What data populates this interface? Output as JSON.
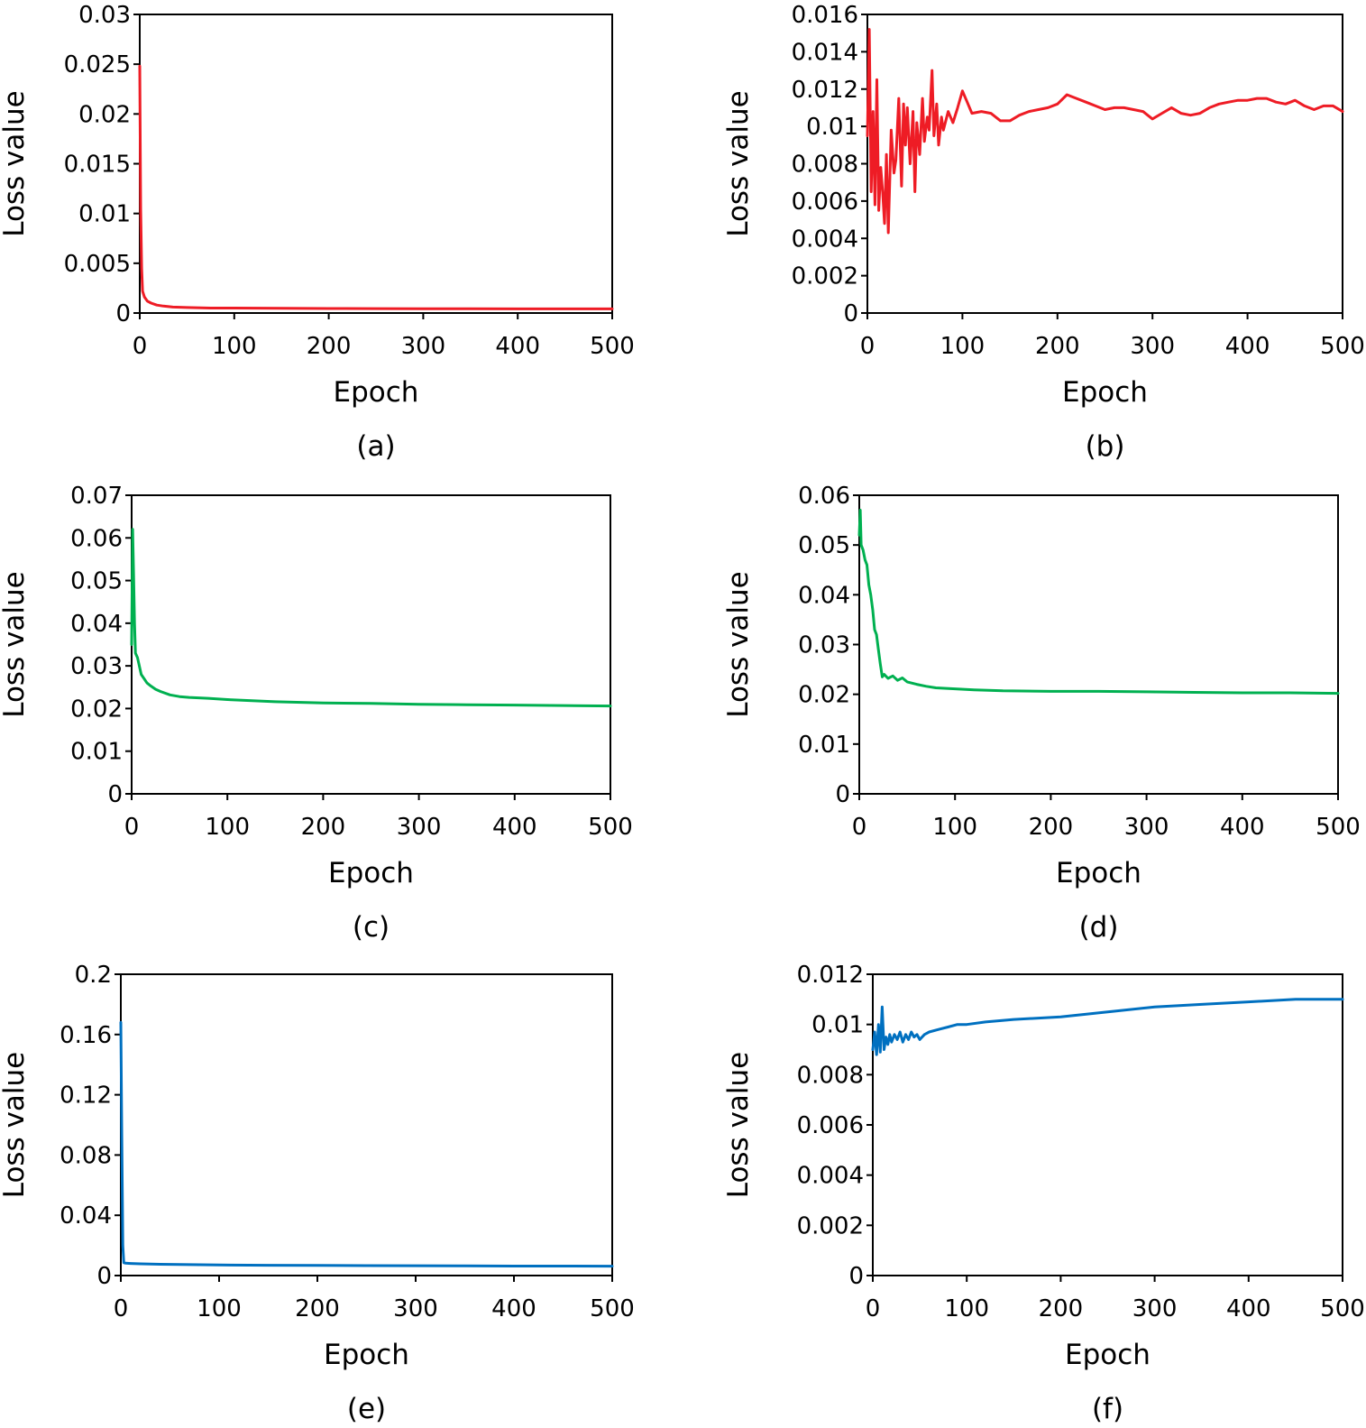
{
  "chart_data": [
    {
      "id": "a",
      "type": "line",
      "caption": "(a)",
      "xlabel": "Epoch",
      "ylabel": "Loss value",
      "xlim": [
        0,
        500
      ],
      "ylim": [
        0,
        0.03
      ],
      "xticks": [
        "0",
        "100",
        "200",
        "300",
        "400",
        "500"
      ],
      "yticks": [
        "0",
        "0.005",
        "0.01",
        "0.015",
        "0.02",
        "0.025",
        "0.03"
      ],
      "grid": false,
      "color": "#ee1c25",
      "series": [
        {
          "x": [
            0,
            1,
            2,
            3,
            5,
            8,
            12,
            18,
            25,
            35,
            50,
            75,
            100,
            150,
            200,
            250,
            300,
            350,
            400,
            450,
            500
          ],
          "values": [
            0.0248,
            0.0105,
            0.0045,
            0.0022,
            0.0016,
            0.0012,
            0.001,
            0.0008,
            0.0007,
            0.0006,
            0.00055,
            0.0005,
            0.0005,
            0.00047,
            0.00045,
            0.00044,
            0.00043,
            0.00043,
            0.00042,
            0.00042,
            0.00042
          ]
        }
      ]
    },
    {
      "id": "b",
      "type": "line",
      "caption": "(b)",
      "xlabel": "Epoch",
      "ylabel": "Loss value",
      "xlim": [
        0,
        500
      ],
      "ylim": [
        0,
        0.016
      ],
      "xticks": [
        "0",
        "100",
        "200",
        "300",
        "400",
        "500"
      ],
      "yticks": [
        "0",
        "0.002",
        "0.004",
        "0.006",
        "0.008",
        "0.01",
        "0.012",
        "0.014",
        "0.016"
      ],
      "grid": false,
      "color": "#ee1c25",
      "series": [
        {
          "x": [
            0,
            2,
            4,
            6,
            8,
            10,
            12,
            14,
            16,
            18,
            20,
            22,
            25,
            28,
            30,
            33,
            36,
            38,
            40,
            42,
            45,
            48,
            50,
            52,
            55,
            58,
            60,
            63,
            65,
            68,
            70,
            73,
            75,
            78,
            80,
            85,
            90,
            95,
            100,
            105,
            110,
            120,
            130,
            140,
            150,
            160,
            170,
            180,
            190,
            200,
            210,
            220,
            230,
            240,
            250,
            260,
            270,
            280,
            290,
            300,
            310,
            320,
            330,
            340,
            350,
            360,
            370,
            380,
            390,
            400,
            410,
            420,
            430,
            440,
            450,
            460,
            470,
            480,
            490,
            500
          ],
          "values": [
            0.0095,
            0.0152,
            0.0065,
            0.0108,
            0.0058,
            0.0125,
            0.0055,
            0.0078,
            0.0065,
            0.0048,
            0.0085,
            0.0043,
            0.0098,
            0.0075,
            0.0082,
            0.0115,
            0.0068,
            0.0112,
            0.009,
            0.011,
            0.008,
            0.0108,
            0.0065,
            0.0102,
            0.0085,
            0.0115,
            0.0092,
            0.0105,
            0.0098,
            0.013,
            0.0095,
            0.0112,
            0.009,
            0.0105,
            0.0098,
            0.0108,
            0.0102,
            0.011,
            0.0119,
            0.0113,
            0.0107,
            0.0108,
            0.0107,
            0.0103,
            0.0103,
            0.0106,
            0.0108,
            0.0109,
            0.011,
            0.0112,
            0.0117,
            0.0115,
            0.0113,
            0.0111,
            0.0109,
            0.011,
            0.011,
            0.0109,
            0.0108,
            0.0104,
            0.0107,
            0.011,
            0.0107,
            0.0106,
            0.0107,
            0.011,
            0.0112,
            0.0113,
            0.0114,
            0.0114,
            0.0115,
            0.0115,
            0.0113,
            0.0112,
            0.0114,
            0.0111,
            0.0109,
            0.0111,
            0.0111,
            0.0108
          ]
        }
      ]
    },
    {
      "id": "c",
      "type": "line",
      "caption": "(c)",
      "xlabel": "Epoch",
      "ylabel": "Loss value",
      "xlim": [
        0,
        500
      ],
      "ylim": [
        0,
        0.07
      ],
      "xticks": [
        "0",
        "100",
        "200",
        "300",
        "400",
        "500"
      ],
      "yticks": [
        "0",
        "0.01",
        "0.02",
        "0.03",
        "0.04",
        "0.05",
        "0.06",
        "0.07"
      ],
      "grid": false,
      "color": "#00b050",
      "series": [
        {
          "x": [
            0,
            1,
            2,
            3,
            4,
            6,
            8,
            10,
            13,
            16,
            20,
            25,
            30,
            40,
            50,
            60,
            80,
            100,
            150,
            200,
            250,
            300,
            350,
            400,
            450,
            500
          ],
          "values": [
            0.035,
            0.062,
            0.052,
            0.04,
            0.033,
            0.032,
            0.03,
            0.028,
            0.027,
            0.026,
            0.0253,
            0.0245,
            0.024,
            0.0232,
            0.0228,
            0.0226,
            0.0224,
            0.0221,
            0.0216,
            0.0213,
            0.0212,
            0.021,
            0.0209,
            0.0208,
            0.0207,
            0.0206
          ]
        }
      ]
    },
    {
      "id": "d",
      "type": "line",
      "caption": "(d)",
      "xlabel": "Epoch",
      "ylabel": "Loss value",
      "xlim": [
        0,
        500
      ],
      "ylim": [
        0,
        0.06
      ],
      "xticks": [
        "0",
        "100",
        "200",
        "300",
        "400",
        "500"
      ],
      "yticks": [
        "0",
        "0.01",
        "0.02",
        "0.03",
        "0.04",
        "0.05",
        "0.06"
      ],
      "grid": false,
      "color": "#00b050",
      "series": [
        {
          "x": [
            0,
            1,
            2,
            4,
            6,
            8,
            10,
            12,
            14,
            16,
            18,
            20,
            22,
            24,
            26,
            30,
            35,
            40,
            45,
            50,
            60,
            70,
            80,
            100,
            120,
            150,
            200,
            250,
            300,
            350,
            400,
            450,
            500
          ],
          "values": [
            0.052,
            0.057,
            0.05,
            0.049,
            0.047,
            0.046,
            0.042,
            0.04,
            0.037,
            0.033,
            0.032,
            0.029,
            0.026,
            0.0235,
            0.024,
            0.0232,
            0.0237,
            0.0228,
            0.0233,
            0.0225,
            0.022,
            0.0216,
            0.0213,
            0.0211,
            0.0209,
            0.0207,
            0.0206,
            0.0206,
            0.0205,
            0.0204,
            0.0203,
            0.0203,
            0.0202
          ]
        }
      ]
    },
    {
      "id": "e",
      "type": "line",
      "caption": "(e)",
      "xlabel": "Epoch",
      "ylabel": "Loss value",
      "xlim": [
        0,
        500
      ],
      "ylim": [
        0,
        0.2
      ],
      "xticks": [
        "0",
        "100",
        "200",
        "300",
        "400",
        "500"
      ],
      "yticks": [
        "0",
        "0.04",
        "0.08",
        "0.12",
        "0.16",
        "0.2"
      ],
      "grid": false,
      "color": "#0070c0",
      "series": [
        {
          "x": [
            0,
            1,
            2,
            3,
            5,
            10,
            20,
            40,
            60,
            100,
            150,
            200,
            250,
            300,
            350,
            400,
            450,
            500
          ],
          "values": [
            0.168,
            0.09,
            0.02,
            0.0085,
            0.0082,
            0.008,
            0.0078,
            0.0075,
            0.0073,
            0.007,
            0.0068,
            0.0067,
            0.0066,
            0.0065,
            0.0064,
            0.0063,
            0.0063,
            0.0062
          ]
        }
      ]
    },
    {
      "id": "f",
      "type": "line",
      "caption": "(f)",
      "xlabel": "Epoch",
      "ylabel": "Loss value",
      "xlim": [
        0,
        500
      ],
      "ylim": [
        0,
        0.012
      ],
      "xticks": [
        "0",
        "100",
        "200",
        "300",
        "400",
        "500"
      ],
      "yticks": [
        "0",
        "0.002",
        "0.004",
        "0.006",
        "0.008",
        "0.01",
        "0.012"
      ],
      "grid": false,
      "color": "#0070c0",
      "series": [
        {
          "x": [
            0,
            2,
            4,
            6,
            8,
            10,
            12,
            14,
            16,
            18,
            20,
            23,
            26,
            29,
            32,
            35,
            38,
            41,
            44,
            47,
            50,
            55,
            60,
            70,
            80,
            90,
            100,
            120,
            150,
            200,
            250,
            300,
            350,
            400,
            450,
            500
          ],
          "values": [
            0.009,
            0.0097,
            0.0088,
            0.01,
            0.0089,
            0.0107,
            0.009,
            0.0095,
            0.0092,
            0.0096,
            0.0093,
            0.0096,
            0.0094,
            0.0097,
            0.0093,
            0.0096,
            0.0094,
            0.0097,
            0.0095,
            0.0096,
            0.0094,
            0.0096,
            0.0097,
            0.0098,
            0.0099,
            0.01,
            0.01,
            0.0101,
            0.0102,
            0.0103,
            0.0105,
            0.0107,
            0.0108,
            0.0109,
            0.011,
            0.011
          ]
        }
      ]
    }
  ]
}
